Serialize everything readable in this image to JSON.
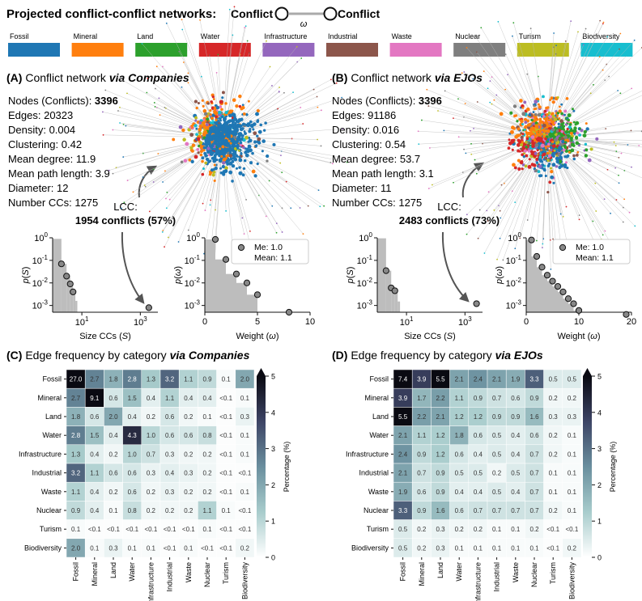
{
  "header": {
    "title": "Projected conflict-conflict networks:",
    "node_left": "Conflict",
    "node_right": "Conflict",
    "edge_symbol": "ω"
  },
  "legend": {
    "categories": [
      {
        "label": "Fossil",
        "color": "#1f77b4"
      },
      {
        "label": "Mineral",
        "color": "#ff7f0e"
      },
      {
        "label": "Land",
        "color": "#2ca02c"
      },
      {
        "label": "Water",
        "color": "#d62728"
      },
      {
        "label": "Infrastructure",
        "color": "#9467bd"
      },
      {
        "label": "Industrial",
        "color": "#8c564b"
      },
      {
        "label": "Waste",
        "color": "#e377c2"
      },
      {
        "label": "Nuclear",
        "color": "#7f7f7f"
      },
      {
        "label": "Turism",
        "color": "#bcbd22"
      },
      {
        "label": "Biodiversity",
        "color": "#17becf"
      }
    ]
  },
  "panels": {
    "A": {
      "label": "(A)",
      "title_plain": "Conflict network",
      "title_italic": "via Companies",
      "stats": {
        "nodes_label": "Nodes (Conflicts): ",
        "nodes_value": "3396",
        "edges": "Edges: 20323",
        "density": "Density: 0.004",
        "clustering": "Clustering: 0.42",
        "mean_degree": "Mean degree: 11.9",
        "mean_path": "Mean path length: 3.9",
        "diameter": "Diameter: 12",
        "ccs": "Number CCs: 1275"
      },
      "lcc_label": "LCC:",
      "lcc_value": "1954 conflicts (57%)"
    },
    "B": {
      "label": "(B)",
      "title_plain": "Conflict network",
      "title_italic": "via EJOs",
      "stats": {
        "nodes_label": "Nodes (Conflicts): ",
        "nodes_value": "3396",
        "edges": "Edges: 91186",
        "density": "Density: 0.016",
        "clustering": "Clustering: 0.54",
        "mean_degree": "Mean degree: 53.7",
        "mean_path": "Mean path length: 3.1",
        "diameter": "Diameter: 11",
        "ccs": "Number CCs: 1275"
      },
      "lcc_label": "LCC:",
      "lcc_value": "2483 conflicts (73%)"
    },
    "C": {
      "label": "(C)",
      "title_plain": "Edge frequency by category",
      "title_italic": "via Companies"
    },
    "D": {
      "label": "(D)",
      "title_plain": "Edge frequency by category",
      "title_italic": "via EJOs"
    }
  },
  "chart_data": [
    {
      "id": "A-size",
      "type": "scatter",
      "xlabel": "Size CCs (S)",
      "ylabel": "p(S)",
      "xscale": "log",
      "yscale": "log",
      "yticks": [
        "10^0",
        "10^-1",
        "10^-2",
        "10^-3"
      ],
      "xticks": [
        "10^1",
        "10^3"
      ],
      "x": [
        2,
        3,
        4,
        5,
        1954
      ],
      "y": [
        0.07,
        0.02,
        0.009,
        0.004,
        0.0008
      ],
      "hist_x": [
        1,
        2,
        3,
        4,
        5,
        6
      ],
      "hist_y": [
        0.9,
        0.07,
        0.02,
        0.009,
        0.004,
        0.0016
      ]
    },
    {
      "id": "A-weight",
      "type": "scatter",
      "xlabel": "Weight (ω)",
      "ylabel": "p(ω)",
      "xlim": [
        0,
        10
      ],
      "xticks": [
        "0",
        "5",
        "10"
      ],
      "yticks": [
        "10^0",
        "10^-1",
        "10^-2",
        "10^-3"
      ],
      "x": [
        1,
        2,
        3,
        4,
        5,
        8
      ],
      "y": [
        0.85,
        0.11,
        0.025,
        0.01,
        0.003,
        0.0005
      ],
      "legend": [
        "Me: 1.0",
        "Mean: 1.1"
      ]
    },
    {
      "id": "B-size",
      "type": "scatter",
      "xlabel": "Size CCs (S)",
      "ylabel": "p(S)",
      "xscale": "log",
      "yscale": "log",
      "yticks": [
        "10^0",
        "10^-1",
        "10^-2",
        "10^-3"
      ],
      "xticks": [
        "10^1",
        "10^3"
      ],
      "x": [
        2,
        3,
        4,
        2483
      ],
      "y": [
        0.035,
        0.006,
        0.0045,
        0.0012
      ],
      "hist_x": [
        1,
        2,
        3,
        4,
        5
      ],
      "hist_y": [
        0.95,
        0.035,
        0.006,
        0.0045,
        0.0015
      ]
    },
    {
      "id": "B-weight",
      "type": "scatter",
      "xlabel": "Weight (ω)",
      "ylabel": "p(ω)",
      "xlim": [
        0,
        20
      ],
      "xticks": [
        "0",
        "10",
        "20"
      ],
      "yticks": [
        "10^0",
        "10^-1",
        "10^-2",
        "10^-3"
      ],
      "x": [
        1,
        2,
        3,
        4,
        5,
        6,
        7,
        8,
        9,
        10,
        19
      ],
      "y": [
        0.8,
        0.15,
        0.05,
        0.022,
        0.012,
        0.007,
        0.004,
        0.002,
        0.0012,
        0.0006,
        0.0004
      ],
      "legend": [
        "Me: 1.0",
        "Mean: 1.1"
      ]
    },
    {
      "id": "C-heatmap",
      "type": "heatmap",
      "categories": [
        "Fossil",
        "Mineral",
        "Land",
        "Water",
        "Infrastructure",
        "Industrial",
        "Waste",
        "Nuclear",
        "Turism",
        "Biodiversity"
      ],
      "values": [
        [
          "27.0",
          "2.7",
          "1.8",
          "2.8",
          "1.3",
          "3.2",
          "1.1",
          "0.9",
          "0.1",
          "2.0"
        ],
        [
          "2.7",
          "9.1",
          "0.6",
          "1.5",
          "0.4",
          "1.1",
          "0.4",
          "0.4",
          "<0.1",
          "0.1"
        ],
        [
          "1.8",
          "0.6",
          "2.0",
          "0.4",
          "0.2",
          "0.6",
          "0.2",
          "0.1",
          "<0.1",
          "0.3"
        ],
        [
          "2.8",
          "1.5",
          "0.4",
          "4.3",
          "1.0",
          "0.6",
          "0.6",
          "0.8",
          "<0.1",
          "0.1"
        ],
        [
          "1.3",
          "0.4",
          "0.2",
          "1.0",
          "0.7",
          "0.3",
          "0.2",
          "0.2",
          "<0.1",
          "0.1"
        ],
        [
          "3.2",
          "1.1",
          "0.6",
          "0.6",
          "0.3",
          "0.4",
          "0.3",
          "0.2",
          "<0.1",
          "<0.1"
        ],
        [
          "1.1",
          "0.4",
          "0.2",
          "0.6",
          "0.2",
          "0.3",
          "0.2",
          "0.2",
          "<0.1",
          "0.1"
        ],
        [
          "0.9",
          "0.4",
          "0.1",
          "0.8",
          "0.2",
          "0.2",
          "0.2",
          "1.1",
          "0.1",
          "<0.1"
        ],
        [
          "0.1",
          "<0.1",
          "<0.1",
          "<0.1",
          "<0.1",
          "<0.1",
          "<0.1",
          "0.1",
          "<0.1",
          "<0.1"
        ],
        [
          "2.0",
          "0.1",
          "0.3",
          "0.1",
          "0.1",
          "<0.1",
          "0.1",
          "<0.1",
          "<0.1",
          "0.2"
        ]
      ],
      "colorbar_label": "Percentage (%)",
      "vmin": 0,
      "vmax": 5,
      "colorbar_ticks": [
        "0",
        "1",
        "2",
        "3",
        "4",
        "5"
      ]
    },
    {
      "id": "D-heatmap",
      "type": "heatmap",
      "categories": [
        "Fossil",
        "Mineral",
        "Land",
        "Water",
        "Infrastructure",
        "Industrial",
        "Waste",
        "Nuclear",
        "Turism",
        "Biodiversity"
      ],
      "values": [
        [
          "7.4",
          "3.9",
          "5.5",
          "2.1",
          "2.4",
          "2.1",
          "1.9",
          "3.3",
          "0.5",
          "0.5"
        ],
        [
          "3.9",
          "1.7",
          "2.2",
          "1.1",
          "0.9",
          "0.7",
          "0.6",
          "0.9",
          "0.2",
          "0.2"
        ],
        [
          "5.5",
          "2.2",
          "2.1",
          "1.2",
          "1.2",
          "0.9",
          "0.9",
          "1.6",
          "0.3",
          "0.3"
        ],
        [
          "2.1",
          "1.1",
          "1.2",
          "1.8",
          "0.6",
          "0.5",
          "0.4",
          "0.6",
          "0.2",
          "0.1"
        ],
        [
          "2.4",
          "0.9",
          "1.2",
          "0.6",
          "0.4",
          "0.5",
          "0.4",
          "0.7",
          "0.2",
          "0.1"
        ],
        [
          "2.1",
          "0.7",
          "0.9",
          "0.5",
          "0.5",
          "0.2",
          "0.5",
          "0.7",
          "0.1",
          "0.1"
        ],
        [
          "1.9",
          "0.6",
          "0.9",
          "0.4",
          "0.4",
          "0.5",
          "0.4",
          "0.7",
          "0.1",
          "0.1"
        ],
        [
          "3.3",
          "0.9",
          "1.6",
          "0.6",
          "0.7",
          "0.7",
          "0.7",
          "0.7",
          "0.2",
          "0.1"
        ],
        [
          "0.5",
          "0.2",
          "0.3",
          "0.2",
          "0.2",
          "0.1",
          "0.1",
          "0.2",
          "<0.1",
          "<0.1"
        ],
        [
          "0.5",
          "0.2",
          "0.3",
          "0.1",
          "0.1",
          "0.1",
          "0.1",
          "0.1",
          "<0.1",
          "0.2"
        ]
      ],
      "colorbar_label": "Percentage (%)",
      "vmin": 0,
      "vmax": 5,
      "colorbar_ticks": [
        "0",
        "1",
        "2",
        "3",
        "4",
        "5"
      ]
    }
  ]
}
